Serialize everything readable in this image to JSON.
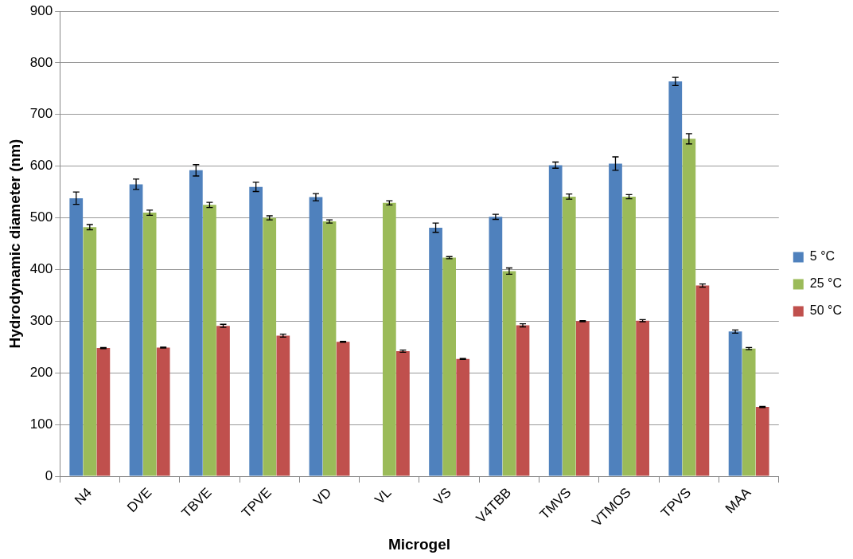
{
  "chart_data": {
    "type": "bar",
    "xlabel": "Microgel",
    "ylabel": "Hydrodynamic diameter (nm)",
    "categories": [
      "N4",
      "DVE",
      "TBVE",
      "TPVE",
      "VD",
      "VL",
      "VS",
      "V4TBB",
      "TMVS",
      "VTMOS",
      "TPVS",
      "MAA"
    ],
    "series": [
      {
        "name": "5 °C",
        "color": "#4f81bd",
        "values": [
          538,
          565,
          592,
          560,
          540,
          0,
          481,
          502,
          602,
          605,
          764,
          280
        ],
        "errors": [
          12,
          10,
          11,
          9,
          7,
          null,
          9,
          5,
          6,
          13,
          8,
          3
        ]
      },
      {
        "name": "25 °C",
        "color": "#9bbb59",
        "values": [
          482,
          510,
          525,
          500,
          493,
          529,
          423,
          397,
          541,
          541,
          653,
          247
        ],
        "errors": [
          5,
          5,
          5,
          4,
          3,
          4,
          2,
          6,
          5,
          4,
          10,
          2
        ]
      },
      {
        "name": "50 °C",
        "color": "#c0504d",
        "values": [
          248,
          249,
          291,
          272,
          260,
          242,
          227,
          292,
          300,
          301,
          369,
          134
        ],
        "errors": [
          1,
          1,
          3,
          3,
          1,
          2,
          1,
          3,
          1,
          2,
          3,
          1
        ]
      }
    ],
    "ylim": [
      0,
      900
    ],
    "yticks": [
      0,
      100,
      200,
      300,
      400,
      500,
      600,
      700,
      800,
      900
    ],
    "grid": "y",
    "legend": "right"
  }
}
